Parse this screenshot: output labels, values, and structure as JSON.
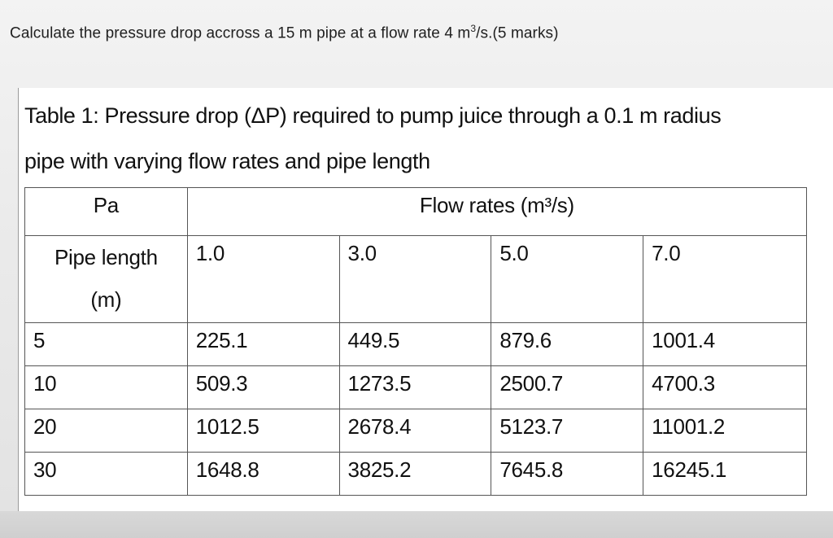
{
  "question": {
    "text_before": "Calculate the pressure drop accross a 15 m pipe at a flow rate 4 m",
    "superscript": "3",
    "text_after": "/s.(5 marks)"
  },
  "table": {
    "caption_line1": "Table 1: Pressure drop (ΔP) required to pump juice through a 0.1 m radius",
    "caption_line2": "pipe with varying flow rates and pipe length",
    "corner_label": "Pa",
    "flow_header": "Flow rates (m³/s)",
    "row_header_line1": "Pipe length",
    "row_header_line2": "(m)",
    "flow_rates": [
      "1.0",
      "3.0",
      "5.0",
      "7.0"
    ],
    "rows": [
      {
        "length": "5",
        "values": [
          "225.1",
          "449.5",
          "879.6",
          "1001.4"
        ]
      },
      {
        "length": "10",
        "values": [
          "509.3",
          "1273.5",
          "2500.7",
          "4700.3"
        ]
      },
      {
        "length": "20",
        "values": [
          "1012.5",
          "2678.4",
          "5123.7",
          "11001.2"
        ]
      },
      {
        "length": "30",
        "values": [
          "1648.8",
          "3825.2",
          "7645.8",
          "16245.1"
        ]
      }
    ]
  }
}
